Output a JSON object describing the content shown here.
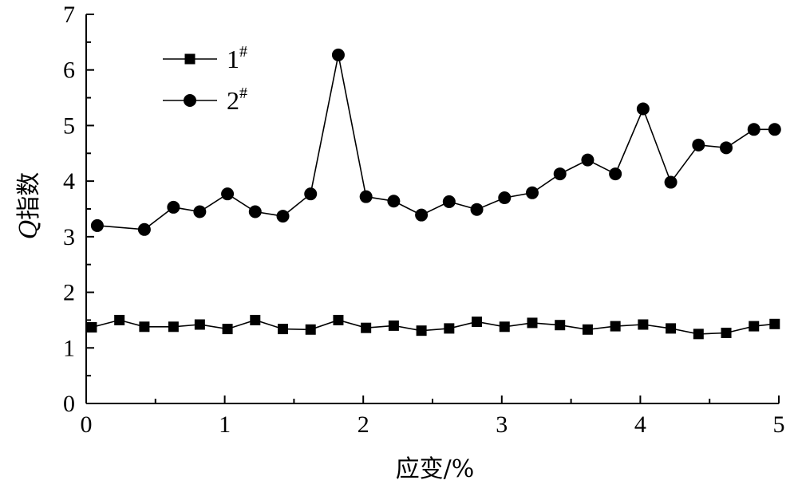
{
  "chart_data": {
    "type": "line",
    "xlabel": "应变/%",
    "ylabel_italic": "Q",
    "ylabel_rest": "指数",
    "xlim": [
      0,
      5
    ],
    "ylim": [
      0,
      7
    ],
    "x_ticks": [
      0,
      1,
      2,
      3,
      4,
      5
    ],
    "y_ticks": [
      0,
      1,
      2,
      3,
      4,
      5,
      6,
      7
    ],
    "grid": false,
    "legend_position": "top-left",
    "series": [
      {
        "name": "1",
        "name_sup": "#",
        "marker": "square",
        "x": [
          0.04,
          0.24,
          0.42,
          0.63,
          0.82,
          1.02,
          1.22,
          1.42,
          1.62,
          1.82,
          2.02,
          2.22,
          2.42,
          2.62,
          2.82,
          3.02,
          3.22,
          3.42,
          3.62,
          3.82,
          4.02,
          4.22,
          4.42,
          4.62,
          4.82,
          4.97
        ],
        "y": [
          1.37,
          1.5,
          1.38,
          1.38,
          1.42,
          1.34,
          1.5,
          1.34,
          1.33,
          1.5,
          1.36,
          1.4,
          1.31,
          1.35,
          1.47,
          1.38,
          1.45,
          1.41,
          1.33,
          1.39,
          1.42,
          1.35,
          1.25,
          1.27,
          1.39,
          1.43
        ]
      },
      {
        "name": "2",
        "name_sup": "#",
        "marker": "circle",
        "x": [
          0.08,
          0.42,
          0.63,
          0.82,
          1.02,
          1.22,
          1.42,
          1.62,
          1.82,
          2.02,
          2.22,
          2.42,
          2.62,
          2.82,
          3.02,
          3.22,
          3.42,
          3.62,
          3.82,
          4.02,
          4.22,
          4.42,
          4.62,
          4.82,
          4.97
        ],
        "y": [
          3.2,
          3.13,
          3.53,
          3.45,
          3.77,
          3.45,
          3.37,
          3.77,
          6.27,
          3.72,
          3.64,
          3.39,
          3.63,
          3.49,
          3.7,
          3.79,
          4.13,
          4.38,
          4.13,
          5.3,
          3.98,
          4.65,
          4.6,
          4.93,
          4.93
        ]
      }
    ]
  }
}
